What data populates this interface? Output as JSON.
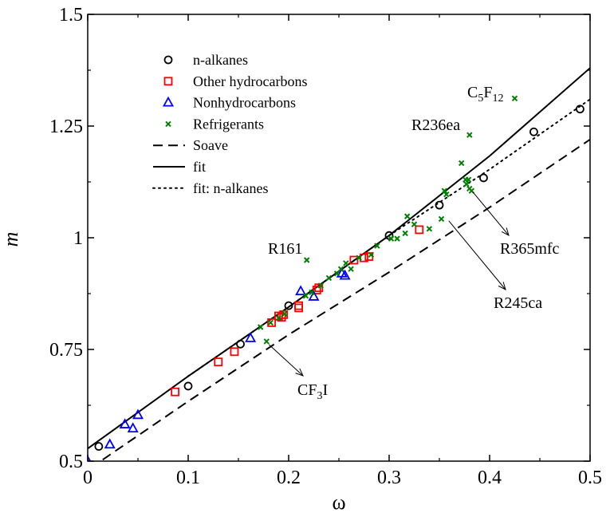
{
  "chart_data": {
    "type": "scatter",
    "title": "",
    "xlabel": "ω",
    "ylabel": "m",
    "xlim": [
      0,
      0.5
    ],
    "ylim": [
      0.5,
      1.5
    ],
    "xticks": [
      "0",
      "0.1",
      "0.2",
      "0.3",
      "0.4",
      "0.5"
    ],
    "yticks": [
      "0.5",
      "0.75",
      "1",
      "1.25",
      "1.5"
    ],
    "grid": false,
    "legend_position": "top-left",
    "colors": {
      "n_alkanes": "#000000",
      "other_hydrocarbons": "#ff0000",
      "nonhydrocarbons": "#0000ff",
      "refrigerants": "#008000",
      "lines": "#000000"
    },
    "series": [
      {
        "name": "n-alkanes",
        "marker": "circle",
        "x": [
          0.011,
          0.1,
          0.152,
          0.2,
          0.3,
          0.35,
          0.394,
          0.444,
          0.49
        ],
        "y": [
          0.533,
          0.668,
          0.762,
          0.848,
          1.005,
          1.073,
          1.134,
          1.237,
          1.288
        ]
      },
      {
        "name": "Other hydrocarbons",
        "marker": "square",
        "x": [
          0.087,
          0.13,
          0.146,
          0.183,
          0.19,
          0.193,
          0.195,
          0.21,
          0.21,
          0.228,
          0.23,
          0.265,
          0.275,
          0.28,
          0.33
        ],
        "y": [
          0.655,
          0.722,
          0.745,
          0.81,
          0.825,
          0.822,
          0.828,
          0.848,
          0.843,
          0.883,
          0.888,
          0.95,
          0.955,
          0.958,
          1.018
        ]
      },
      {
        "name": "Nonhydrocarbons",
        "marker": "triangle",
        "x": [
          -0.002,
          0.022,
          0.037,
          0.045,
          0.05,
          0.162,
          0.212,
          0.225,
          0.253,
          0.256
        ],
        "y": [
          0.508,
          0.537,
          0.582,
          0.573,
          0.603,
          0.775,
          0.88,
          0.868,
          0.92,
          0.915
        ]
      },
      {
        "name": "Refrigerants",
        "marker": "x",
        "x": [
          0.172,
          0.182,
          0.19,
          0.196,
          0.217,
          0.223,
          0.232,
          0.24,
          0.248,
          0.252,
          0.257,
          0.262,
          0.27,
          0.282,
          0.288,
          0.302,
          0.308,
          0.316,
          0.318,
          0.325,
          0.34,
          0.352,
          0.355,
          0.357,
          0.372,
          0.376,
          0.379,
          0.38,
          0.382,
          0.377,
          0.425,
          0.178,
          0.218,
          0.38
        ],
        "y": [
          0.8,
          0.81,
          0.82,
          0.83,
          0.87,
          0.878,
          0.893,
          0.91,
          0.92,
          0.93,
          0.943,
          0.93,
          0.955,
          0.962,
          0.982,
          0.998,
          0.998,
          1.01,
          1.048,
          1.03,
          1.02,
          1.042,
          1.105,
          1.097,
          1.167,
          1.13,
          1.13,
          1.11,
          1.105,
          1.12,
          1.312,
          0.768,
          0.95,
          1.23
        ]
      },
      {
        "name": "Soave",
        "style": "dashed",
        "x": [
          -0.01,
          0.1,
          0.2,
          0.3,
          0.4,
          0.5
        ],
        "y": [
          0.465,
          0.634,
          0.783,
          0.923,
          1.068,
          1.22
        ]
      },
      {
        "name": "fit",
        "style": "solid",
        "x": [
          -0.01,
          0.1,
          0.2,
          0.3,
          0.4,
          0.5
        ],
        "y": [
          0.512,
          0.69,
          0.845,
          1.005,
          1.183,
          1.38
        ]
      },
      {
        "name": "fit: n-alkanes",
        "style": "dotted",
        "x": [
          0.1,
          0.2,
          0.3,
          0.4,
          0.5
        ],
        "y": [
          0.69,
          0.845,
          1.005,
          1.153,
          1.31
        ]
      }
    ],
    "annotations": [
      {
        "label_parts": [
          "C",
          "5",
          "F",
          "12"
        ],
        "label_text": "C5F12",
        "x": 0.425,
        "y": 1.312
      },
      {
        "label_text": "R236ea",
        "x": 0.38,
        "y": 1.23
      },
      {
        "label_text": "R161",
        "x": 0.218,
        "y": 0.95
      },
      {
        "label_text": "R365mfc",
        "x": 0.38,
        "y": 1.11
      },
      {
        "label_text": "R245ca",
        "x": 0.357,
        "y": 1.045
      },
      {
        "label_parts": [
          "CF",
          "3",
          "I"
        ],
        "label_text": "CF3I",
        "x": 0.178,
        "y": 0.768
      }
    ]
  }
}
